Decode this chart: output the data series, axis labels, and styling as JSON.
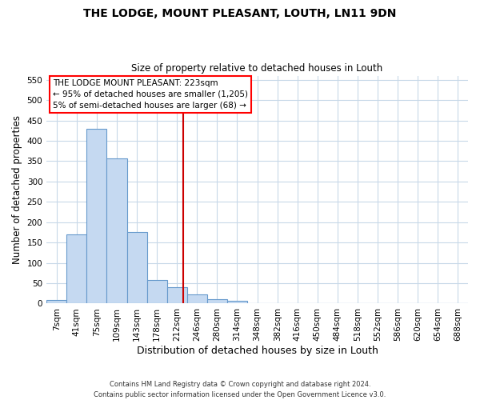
{
  "title": "THE LODGE, MOUNT PLEASANT, LOUTH, LN11 9DN",
  "subtitle": "Size of property relative to detached houses in Louth",
  "xlabel": "Distribution of detached houses by size in Louth",
  "ylabel": "Number of detached properties",
  "footer_line1": "Contains HM Land Registry data © Crown copyright and database right 2024.",
  "footer_line2": "Contains public sector information licensed under the Open Government Licence v3.0.",
  "bin_labels": [
    "7sqm",
    "41sqm",
    "75sqm",
    "109sqm",
    "143sqm",
    "178sqm",
    "212sqm",
    "246sqm",
    "280sqm",
    "314sqm",
    "348sqm",
    "382sqm",
    "416sqm",
    "450sqm",
    "484sqm",
    "518sqm",
    "552sqm",
    "586sqm",
    "620sqm",
    "654sqm",
    "688sqm"
  ],
  "bar_heights": [
    8,
    170,
    430,
    357,
    175,
    57,
    40,
    22,
    10,
    7,
    1,
    0,
    0,
    0,
    1,
    0,
    0,
    0,
    0,
    1,
    1
  ],
  "bar_color": "#c5d9f1",
  "bar_edge_color": "#6699cc",
  "vline_color": "#cc0000",
  "vline_pos": 6.32,
  "ylim": [
    0,
    560
  ],
  "yticks": [
    0,
    50,
    100,
    150,
    200,
    250,
    300,
    350,
    400,
    450,
    500,
    550
  ],
  "annotation_text_line1": "THE LODGE MOUNT PLEASANT: 223sqm",
  "annotation_text_line2": "← 95% of detached houses are smaller (1,205)",
  "annotation_text_line3": "5% of semi-detached houses are larger (68) →",
  "background_color": "#ffffff",
  "grid_color": "#c8d8e8"
}
